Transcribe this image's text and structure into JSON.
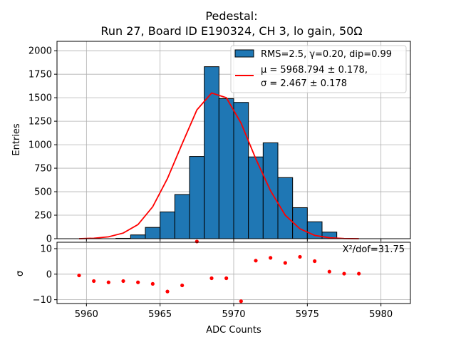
{
  "chart_data": [
    {
      "type": "bar",
      "title": "Pedestal:",
      "subtitle": "Run 27, Board ID E190324, CH 3, lo gain, 50Ω",
      "xlabel": "",
      "ylabel": "Entries",
      "xlim": [
        5958.0,
        5982.0
      ],
      "ylim": [
        0,
        2100
      ],
      "x_ticks": [
        5960,
        5965,
        5970,
        5975,
        5980
      ],
      "y_ticks": [
        0,
        250,
        500,
        750,
        1000,
        1250,
        1500,
        1750,
        2000
      ],
      "grid": true,
      "legend_position": "top-right",
      "bar_color": "#1f77b4",
      "fit_color": "#ff0000",
      "histogram": {
        "label": "RMS=2.5, γ=0.20, dip=0.99",
        "bin_edges": [
          5962,
          5963,
          5964,
          5965,
          5966,
          5967,
          5968,
          5969,
          5970,
          5971,
          5972,
          5973,
          5974,
          5975,
          5976,
          5977
        ],
        "counts": [
          4,
          40,
          120,
          285,
          470,
          875,
          1830,
          1490,
          1450,
          870,
          1020,
          650,
          330,
          180,
          70
        ]
      },
      "fit": {
        "label_mu": "μ = 5968.794 ± 0.178,",
        "label_sigma": "σ = 2.467 ± 0.178",
        "x": [
          5959.5,
          5960.5,
          5961.5,
          5962.5,
          5963.5,
          5964.5,
          5965.5,
          5966.5,
          5967.5,
          5968.5,
          5969.5,
          5970.5,
          5971.5,
          5972.5,
          5973.5,
          5974.5,
          5975.5,
          5976.5,
          5977.5,
          5978.5
        ],
        "y": [
          0,
          5,
          20,
          60,
          150,
          340,
          640,
          1010,
          1370,
          1550,
          1500,
          1230,
          850,
          510,
          250,
          105,
          35,
          10,
          2,
          0
        ]
      }
    },
    {
      "type": "scatter",
      "xlabel": "ADC Counts",
      "ylabel": "σ",
      "xlim": [
        5958.0,
        5982.0
      ],
      "ylim": [
        -11.5,
        12.5
      ],
      "x_ticks": [
        5960,
        5965,
        5970,
        5975,
        5980
      ],
      "y_ticks": [
        -10,
        0,
        10
      ],
      "grid": true,
      "point_color": "#ff0000",
      "annotation": "X²/dof=31.75",
      "x": [
        5959.5,
        5960.5,
        5961.5,
        5962.5,
        5963.5,
        5964.5,
        5965.5,
        5966.5,
        5967.5,
        5968.5,
        5969.5,
        5970.5,
        5971.5,
        5972.5,
        5973.5,
        5974.5,
        5975.5,
        5976.5,
        5977.5,
        5978.5
      ],
      "y": [
        -0.5,
        -2.7,
        -3.2,
        -2.7,
        -3.2,
        -3.8,
        -6.8,
        -4.4,
        12.8,
        -1.6,
        -1.6,
        -10.6,
        5.3,
        6.4,
        4.4,
        6.8,
        5.1,
        1.0,
        0.2,
        0.2
      ]
    }
  ]
}
